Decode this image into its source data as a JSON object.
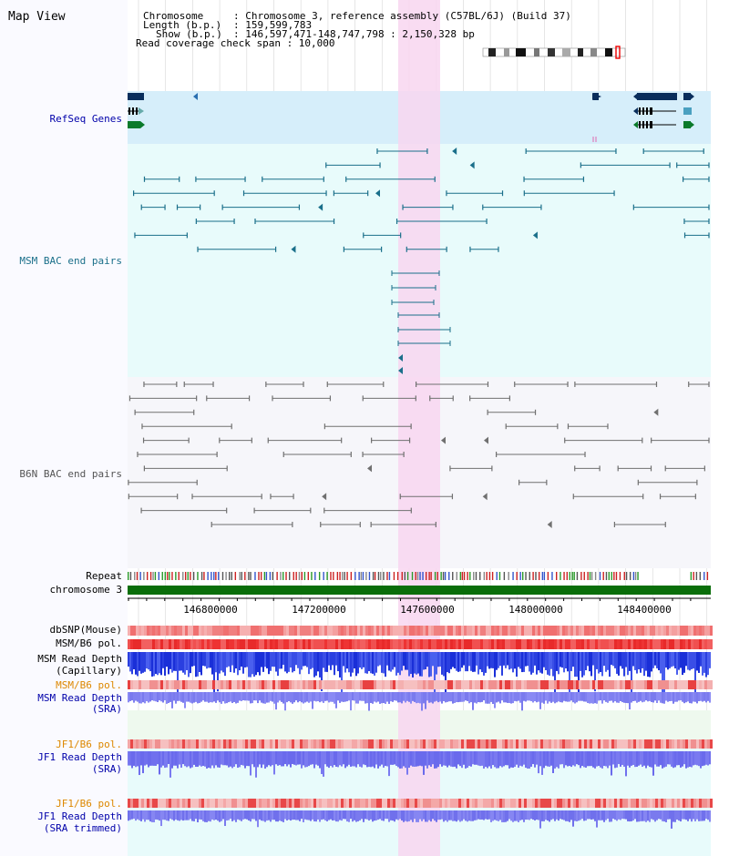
{
  "title": "Map View",
  "header": {
    "chromosome_key": "Chromosome",
    "chromosome_val": ": Chromosome 3, reference assembly (C57BL/6J) (Build 37)",
    "length_key": "Length (b.p.)",
    "length_val": ": 159,599,783",
    "show_key": "Show (b.p.)",
    "show_val": ": 146,597,471-148,747,798 : 2,150,328 bp",
    "coverage_line": "Read coverage check span : 10,000"
  },
  "tracks": {
    "refseq": "RefSeq Genes",
    "msm_bac": "MSM BAC end pairs",
    "b6n_bac": "B6N BAC end pairs",
    "repeat": "Repeat",
    "chromosome": "chromosome 3",
    "dbsnp": "dbSNP(Mouse)",
    "msm_b6_pol": "MSM/B6 pol.",
    "msm_depth_cap_1": "MSM Read Depth",
    "msm_depth_cap_2": "(Capillary)",
    "msm_b6_pol_2": "MSM/B6 pol.",
    "msm_depth_sra_1": "MSM Read Depth",
    "msm_depth_sra_2": "(SRA)",
    "jf1_b6_pol": "JF1/B6 pol.",
    "jf1_depth_1": "JF1 Read Depth",
    "jf1_depth_2": "(SRA)",
    "jf1_b6_pol_2": "JF1/B6 pol.",
    "jf1_trim_1": "JF1 Read Depth",
    "jf1_trim_2": "(SRA trimmed)"
  },
  "axis": {
    "ticks": [
      "146800000",
      "147200000",
      "147600000",
      "148000000",
      "148400000"
    ]
  },
  "colors": {
    "refseq_bg": "#d6eefa",
    "msm_bg": "#e8fbfb",
    "b6n_bg": "#f4f4f8",
    "highlight": "#f8d8f0",
    "msm_line": "#1a6f8a",
    "b6n_line": "#707070",
    "refseq_dark": "#0a2e5c",
    "refseq_green": "#0a7a2a",
    "chrom_green": "#0a6e0a",
    "depth_blue": "#2233dd",
    "depth_light": "#7f7ff0",
    "pol_red": "#ee3333",
    "label_blue": "#0000aa",
    "label_orange": "#dd8800"
  }
}
